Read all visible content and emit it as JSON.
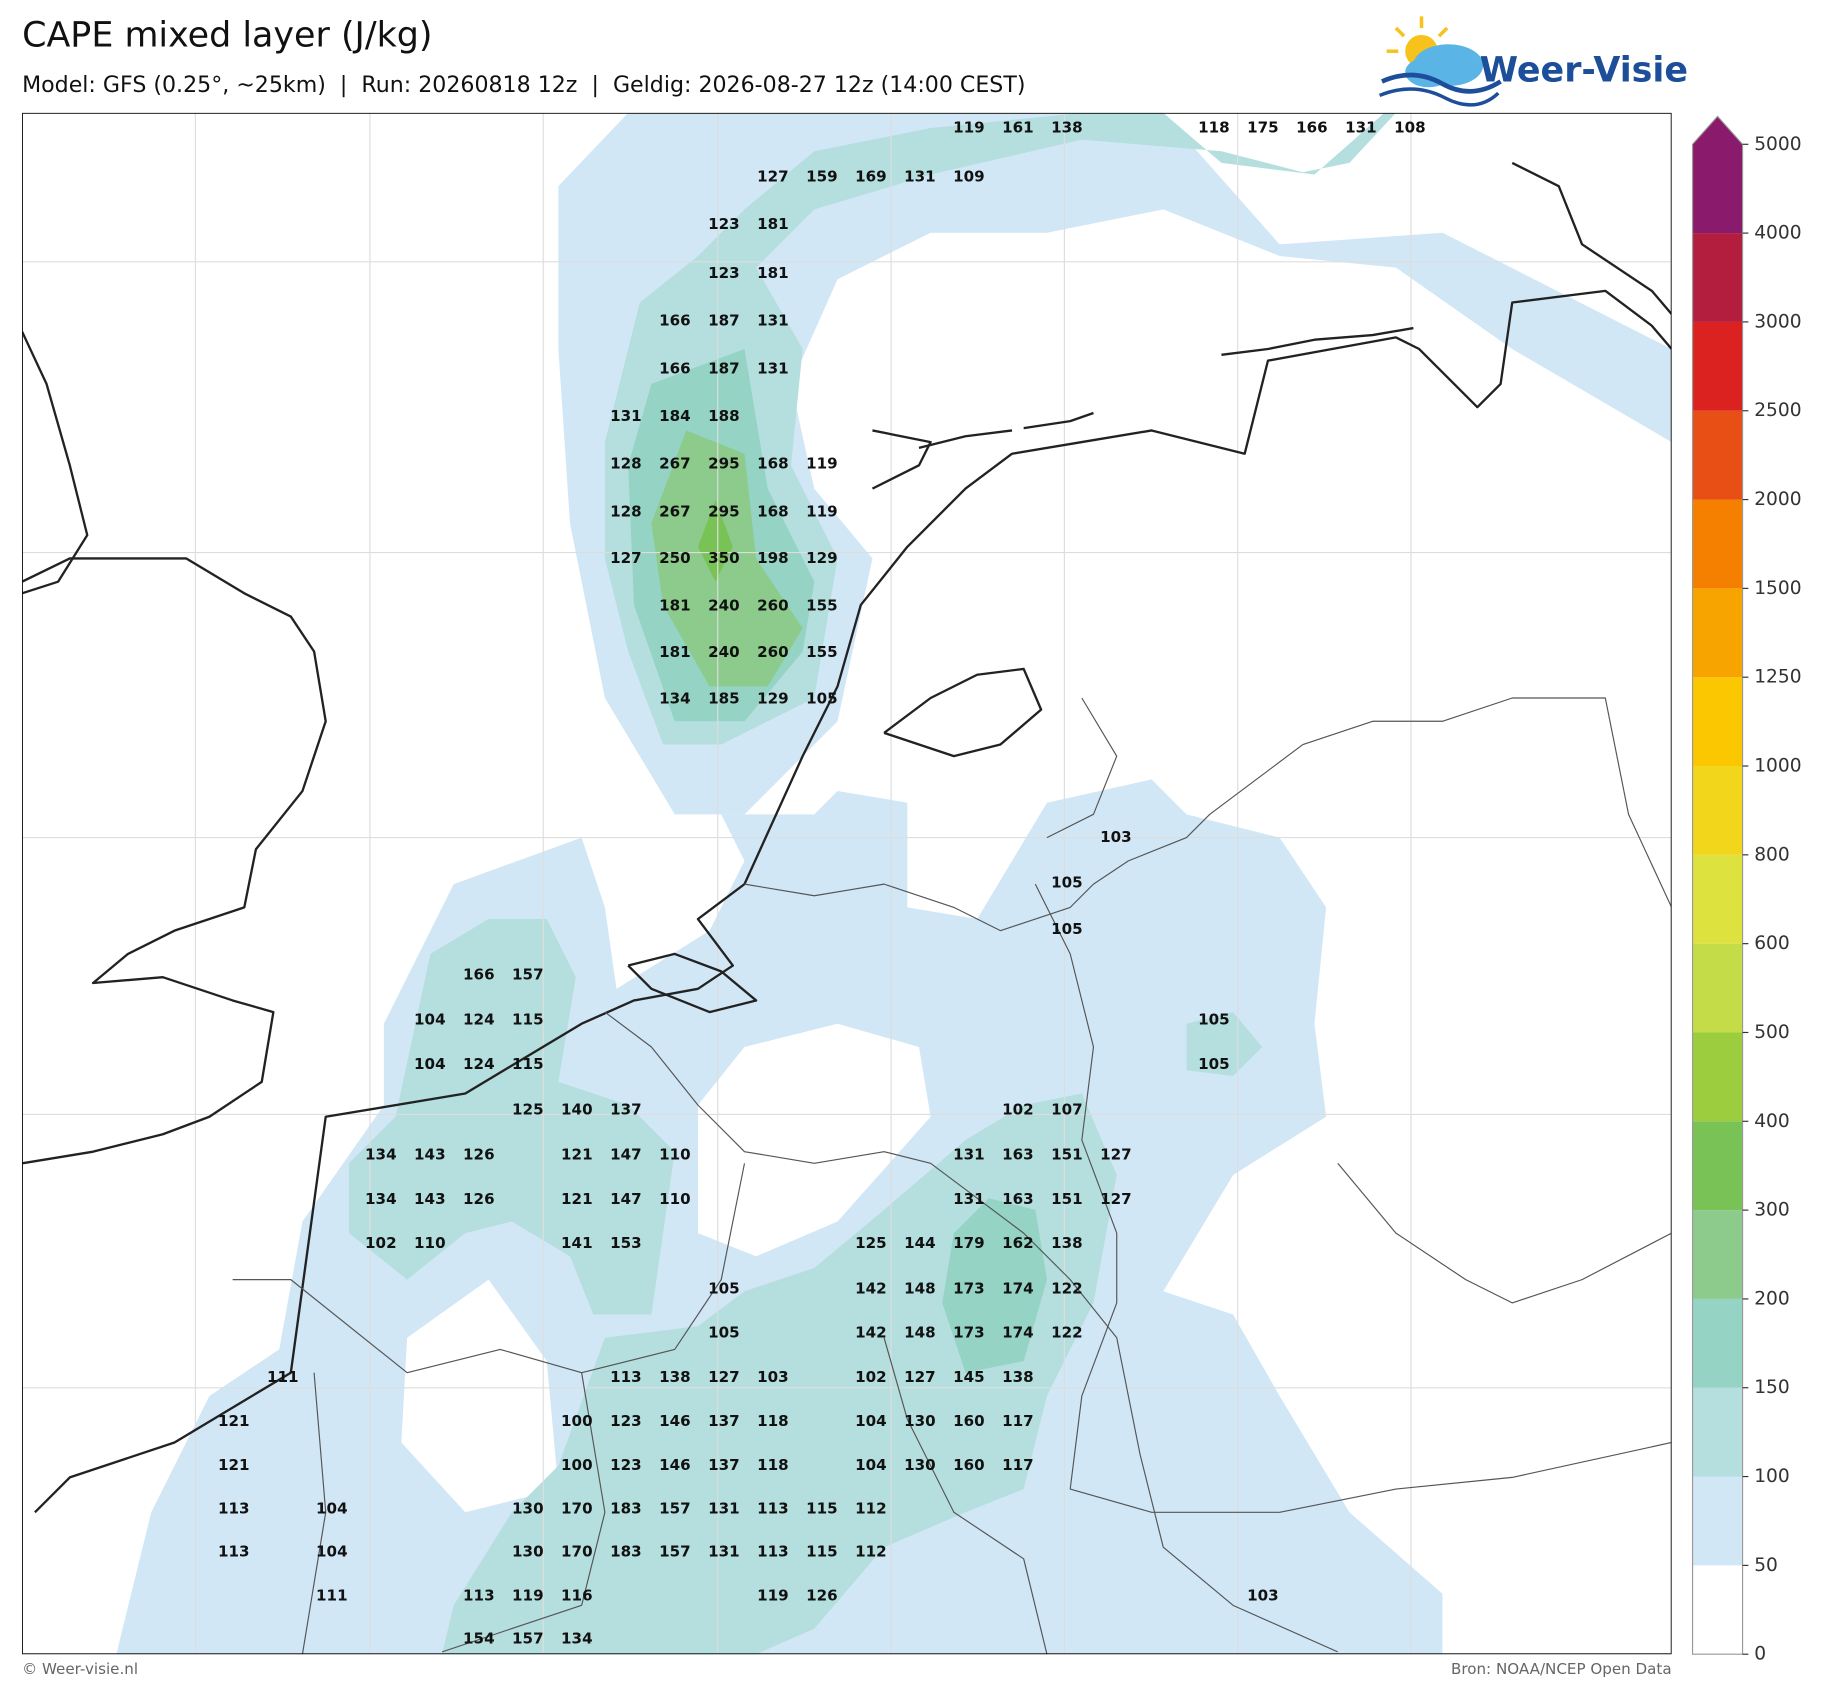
{
  "header": {
    "title": "CAPE mixed layer (J/kg)",
    "subtitle": "Model: GFS (0.25°, ~25km)  |  Run: 20260818 12z  |  Geldig: 2026-08-27 12z (14:00 CEST)"
  },
  "logo": {
    "text": "Weer-Visie"
  },
  "map": {
    "grid": [
      [
        null,
        null,
        null,
        null,
        null,
        null,
        null,
        null,
        null,
        null,
        null,
        null,
        null,
        null,
        null,
        119,
        161,
        138,
        null,
        null,
        118,
        175,
        166,
        131,
        108
      ],
      [
        null,
        null,
        null,
        null,
        null,
        null,
        null,
        null,
        null,
        null,
        null,
        127,
        159,
        169,
        131,
        109
      ],
      [
        null,
        null,
        null,
        null,
        null,
        null,
        null,
        null,
        null,
        null,
        123,
        181
      ],
      [
        null,
        null,
        null,
        null,
        null,
        null,
        null,
        null,
        null,
        null,
        123,
        181
      ],
      [
        null,
        null,
        null,
        null,
        null,
        null,
        null,
        null,
        null,
        166,
        187,
        131
      ],
      [
        null,
        null,
        null,
        null,
        null,
        null,
        null,
        null,
        null,
        166,
        187,
        131
      ],
      [
        null,
        null,
        null,
        null,
        null,
        null,
        null,
        null,
        131,
        184,
        188
      ],
      [
        null,
        null,
        null,
        null,
        null,
        null,
        null,
        null,
        128,
        267,
        295,
        168,
        119
      ],
      [
        null,
        null,
        null,
        null,
        null,
        null,
        null,
        null,
        128,
        267,
        295,
        168,
        119
      ],
      [
        null,
        null,
        null,
        null,
        null,
        null,
        null,
        null,
        127,
        250,
        350,
        198,
        129
      ],
      [
        null,
        null,
        null,
        null,
        null,
        null,
        null,
        null,
        null,
        181,
        240,
        260,
        155
      ],
      [
        null,
        null,
        null,
        null,
        null,
        null,
        null,
        null,
        null,
        181,
        240,
        260,
        155
      ],
      [
        null,
        null,
        null,
        null,
        null,
        null,
        null,
        null,
        null,
        134,
        185,
        129,
        105
      ],
      [
        null,
        null,
        null,
        null,
        null,
        null,
        null,
        null,
        null,
        null,
        null,
        null,
        null,
        null,
        null,
        null,
        null,
        null,
        103
      ],
      [
        null,
        null,
        null,
        null,
        null,
        null,
        null,
        null,
        null,
        null,
        null,
        null,
        null,
        null,
        null,
        null,
        null,
        105
      ],
      [
        null,
        null,
        null,
        null,
        null,
        null,
        null,
        null,
        null,
        null,
        null,
        null,
        null,
        null,
        null,
        null,
        null,
        105
      ],
      [
        null,
        null,
        null,
        null,
        null,
        166,
        157
      ],
      [
        null,
        null,
        null,
        null,
        104,
        124,
        115,
        null,
        null,
        null,
        null,
        null,
        null,
        null,
        null,
        null,
        null,
        null,
        null,
        null,
        105
      ],
      [
        null,
        null,
        null,
        null,
        104,
        124,
        115,
        null,
        null,
        null,
        null,
        null,
        null,
        null,
        null,
        null,
        null,
        null,
        null,
        null,
        105
      ],
      [
        null,
        null,
        null,
        null,
        null,
        null,
        125,
        140,
        137,
        null,
        null,
        null,
        null,
        null,
        null,
        null,
        102,
        107
      ],
      [
        null,
        null,
        null,
        134,
        143,
        126,
        null,
        121,
        147,
        110,
        null,
        null,
        null,
        null,
        null,
        131,
        163,
        151,
        127
      ],
      [
        null,
        null,
        null,
        134,
        143,
        126,
        null,
        121,
        147,
        110,
        null,
        null,
        null,
        null,
        null,
        131,
        163,
        151,
        127
      ],
      [
        null,
        null,
        null,
        102,
        110,
        null,
        null,
        141,
        153,
        null,
        null,
        null,
        null,
        125,
        144,
        179,
        162,
        138
      ],
      [
        null,
        null,
        null,
        null,
        null,
        null,
        null,
        null,
        null,
        null,
        105,
        null,
        null,
        142,
        148,
        173,
        174,
        122
      ],
      [
        null,
        null,
        null,
        null,
        null,
        null,
        null,
        null,
        null,
        null,
        105,
        null,
        null,
        142,
        148,
        173,
        174,
        122
      ],
      [
        null,
        111,
        null,
        null,
        null,
        null,
        null,
        null,
        113,
        138,
        127,
        103,
        null,
        102,
        127,
        145,
        138
      ],
      [
        121,
        null,
        null,
        null,
        null,
        null,
        null,
        100,
        123,
        146,
        137,
        118,
        null,
        104,
        130,
        160,
        117
      ],
      [
        121,
        null,
        null,
        null,
        null,
        null,
        null,
        100,
        123,
        146,
        137,
        118,
        null,
        104,
        130,
        160,
        117
      ],
      [
        113,
        null,
        104,
        null,
        null,
        null,
        130,
        170,
        183,
        157,
        131,
        113,
        115,
        112
      ],
      [
        113,
        null,
        104,
        null,
        null,
        null,
        130,
        170,
        183,
        157,
        131,
        113,
        115,
        112
      ],
      [
        null,
        null,
        111,
        null,
        null,
        113,
        119,
        116,
        null,
        null,
        null,
        119,
        126,
        null,
        null,
        null,
        null,
        null,
        null,
        null,
        null,
        103
      ],
      [
        null,
        null,
        null,
        null,
        null,
        154,
        157,
        134
      ]
    ]
  },
  "colorbar": {
    "levels": [
      0,
      50,
      100,
      150,
      200,
      300,
      400,
      500,
      600,
      800,
      1000,
      1250,
      1500,
      2000,
      2500,
      3000,
      4000,
      5000
    ],
    "colors": [
      "#ffffff",
      "#d1e7f6",
      "#b5dede",
      "#95d3c4",
      "#8ccb8c",
      "#78c256",
      "#9ccd3e",
      "#c3dc48",
      "#dde23e",
      "#f1d61c",
      "#fbc700",
      "#f8a400",
      "#f58000",
      "#e84f14",
      "#dc2121",
      "#b31e3e",
      "#8a1a6b"
    ]
  },
  "footer": {
    "left": "© Weer-visie.nl",
    "right": "Bron: NOAA/NCEP Open Data"
  }
}
